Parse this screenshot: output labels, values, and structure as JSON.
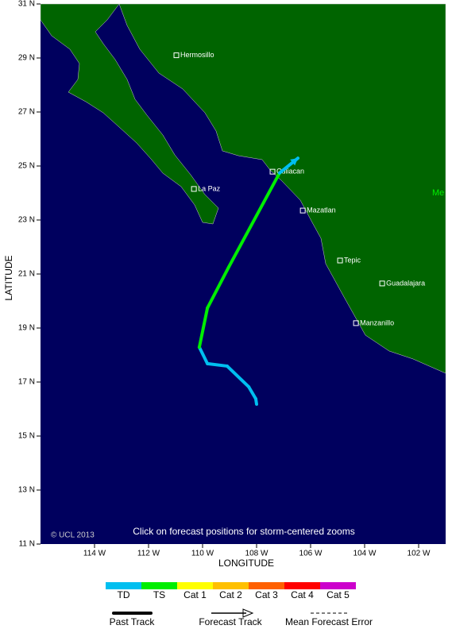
{
  "map": {
    "lonlim": [
      -116,
      -101
    ],
    "latlim": [
      11,
      31
    ],
    "lat_ticks": [
      {
        "value": 31,
        "label": "31 N"
      },
      {
        "value": 29,
        "label": "29 N"
      },
      {
        "value": 27,
        "label": "27 N"
      },
      {
        "value": 25,
        "label": "25 N"
      },
      {
        "value": 23,
        "label": "23 N"
      },
      {
        "value": 21,
        "label": "21 N"
      },
      {
        "value": 19,
        "label": "19 N"
      },
      {
        "value": 17,
        "label": "17 N"
      },
      {
        "value": 15,
        "label": "15 N"
      },
      {
        "value": 13,
        "label": "13 N"
      },
      {
        "value": 11,
        "label": "11 N"
      }
    ],
    "lon_ticks": [
      {
        "value": -114,
        "label": "114 W"
      },
      {
        "value": -112,
        "label": "112 W"
      },
      {
        "value": -110,
        "label": "110 W"
      },
      {
        "value": -108,
        "label": "108 W"
      },
      {
        "value": -106,
        "label": "106 W"
      },
      {
        "value": -104,
        "label": "104 W"
      },
      {
        "value": -102,
        "label": "102 W"
      }
    ],
    "x_axis_label": "LONGITUDE",
    "y_axis_label": "LATITUDE",
    "copyright": "© UCL 2013",
    "note": "Click on forecast positions for storm-centered zooms",
    "country_label": "Me",
    "cities": [
      {
        "name": "Hermosillo",
        "lon": -110.97,
        "lat": 29.1
      },
      {
        "name": "Culiacan",
        "lon": -107.41,
        "lat": 24.79
      },
      {
        "name": "La Paz",
        "lon": -110.32,
        "lat": 24.15
      },
      {
        "name": "Mazatlan",
        "lon": -106.29,
        "lat": 23.35
      },
      {
        "name": "Tepic",
        "lon": -104.91,
        "lat": 21.5
      },
      {
        "name": "Guadalajara",
        "lon": -103.35,
        "lat": 20.65
      },
      {
        "name": "Manzanillo",
        "lon": -104.32,
        "lat": 19.18
      }
    ],
    "track": {
      "points": [
        {
          "lon": -108.0,
          "lat": 16.18,
          "category": 0
        },
        {
          "lon": -108.03,
          "lat": 16.38,
          "category": 0
        },
        {
          "lon": -108.29,
          "lat": 16.82,
          "category": 0
        },
        {
          "lon": -109.09,
          "lat": 17.59,
          "category": 0
        },
        {
          "lon": -109.82,
          "lat": 17.68,
          "category": 0
        },
        {
          "lon": -110.12,
          "lat": 18.29,
          "category": 1
        },
        {
          "lon": -109.82,
          "lat": 19.74,
          "category": 1
        },
        {
          "lon": -109.03,
          "lat": 21.26,
          "category": 1
        },
        {
          "lon": -107.15,
          "lat": 24.74,
          "category": 0
        },
        {
          "lon": -106.47,
          "lat": 25.29,
          "category": 0
        }
      ]
    }
  },
  "legend": {
    "categories": [
      {
        "name": "TD",
        "color": "#00bff0"
      },
      {
        "name": "TS",
        "color": "#00ee00"
      },
      {
        "name": "Cat 1",
        "color": "#ffff00"
      },
      {
        "name": "Cat 2",
        "color": "#ffc000"
      },
      {
        "name": "Cat 3",
        "color": "#ff6000"
      },
      {
        "name": "Cat 4",
        "color": "#ff0000"
      },
      {
        "name": "Cat 5",
        "color": "#cc00cc"
      }
    ],
    "past_track": "Past Track",
    "forecast_track": "Forecast Track",
    "mean_error": "Mean Forecast Error"
  }
}
